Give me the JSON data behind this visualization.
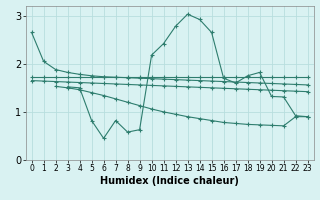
{
  "xlabel": "Humidex (Indice chaleur)",
  "bg_color": "#d9f2f2",
  "line_color": "#2e7d6e",
  "grid_color": "#b8dede",
  "xlim": [
    -0.5,
    23.5
  ],
  "ylim": [
    0,
    3.2
  ],
  "yticks": [
    0,
    1,
    2,
    3
  ],
  "xticks": [
    0,
    1,
    2,
    3,
    4,
    5,
    6,
    7,
    8,
    9,
    10,
    11,
    12,
    13,
    14,
    15,
    16,
    17,
    18,
    19,
    20,
    21,
    22,
    23
  ],
  "line1_x": [
    0,
    1,
    2,
    3,
    4,
    5,
    6,
    7,
    8,
    9,
    10,
    11,
    12,
    13,
    14,
    15,
    16,
    17,
    18,
    19,
    20,
    21,
    22,
    23
  ],
  "line1_y": [
    2.65,
    2.05,
    1.88,
    1.82,
    1.78,
    1.75,
    1.73,
    1.72,
    1.71,
    1.7,
    1.69,
    1.68,
    1.67,
    1.66,
    1.65,
    1.64,
    1.63,
    1.62,
    1.61,
    1.6,
    1.59,
    1.58,
    1.57,
    1.56
  ],
  "line2_x": [
    0,
    1,
    2,
    3,
    4,
    5,
    6,
    7,
    8,
    9,
    10,
    11,
    12,
    13,
    14,
    15,
    16,
    17,
    18,
    19,
    20,
    21,
    22,
    23
  ],
  "line2_y": [
    1.72,
    1.72,
    1.72,
    1.72,
    1.72,
    1.72,
    1.72,
    1.72,
    1.72,
    1.72,
    1.72,
    1.72,
    1.72,
    1.72,
    1.72,
    1.72,
    1.72,
    1.72,
    1.72,
    1.72,
    1.72,
    1.72,
    1.72,
    1.72
  ],
  "line3_x": [
    0,
    1,
    2,
    3,
    4,
    5,
    6,
    7,
    8,
    9,
    10,
    11,
    12,
    13,
    14,
    15,
    16,
    17,
    18,
    19,
    20,
    21,
    22,
    23
  ],
  "line3_y": [
    1.65,
    1.64,
    1.63,
    1.62,
    1.61,
    1.6,
    1.59,
    1.58,
    1.57,
    1.56,
    1.55,
    1.54,
    1.53,
    1.52,
    1.51,
    1.5,
    1.49,
    1.48,
    1.47,
    1.46,
    1.45,
    1.44,
    1.43,
    1.42
  ],
  "line4_x": [
    2,
    3,
    4,
    5,
    6,
    7,
    8,
    9,
    10,
    11,
    12,
    13,
    14,
    15,
    16,
    17,
    18,
    19,
    20,
    21,
    22,
    23
  ],
  "line4_y": [
    1.53,
    1.5,
    1.46,
    1.4,
    1.34,
    1.27,
    1.2,
    1.13,
    1.06,
    1.0,
    0.95,
    0.9,
    0.86,
    0.82,
    0.78,
    0.76,
    0.74,
    0.73,
    0.72,
    0.71,
    0.9,
    0.9
  ],
  "line5_x": [
    3,
    4,
    5,
    6,
    7,
    8,
    9,
    10,
    11,
    12,
    13,
    14,
    15,
    16,
    17,
    18,
    19,
    20,
    21,
    22,
    23
  ],
  "line5_y": [
    1.52,
    1.5,
    0.82,
    0.45,
    0.82,
    0.58,
    0.63,
    2.18,
    2.42,
    2.78,
    3.03,
    2.92,
    2.65,
    1.7,
    1.6,
    1.75,
    1.82,
    1.32,
    1.31,
    0.92,
    0.9
  ]
}
